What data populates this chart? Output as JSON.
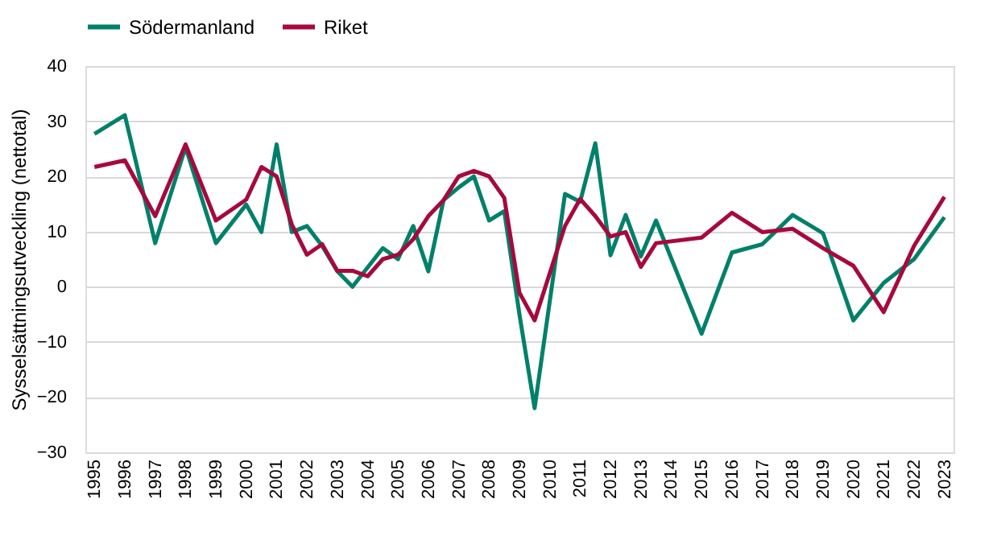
{
  "chart_data": {
    "type": "line",
    "ylabel": "Sysselsättningsutveckling  (nettotal)",
    "xlim": [
      1994.7,
      2023.3
    ],
    "xticks": [
      1995,
      1996,
      1997,
      1998,
      1999,
      2000,
      2001,
      2002,
      2003,
      2004,
      2005,
      2006,
      2007,
      2008,
      2009,
      2010,
      2011,
      2012,
      2013,
      2014,
      2015,
      2016,
      2017,
      2018,
      2019,
      2020,
      2021,
      2022,
      2023
    ],
    "ylim": [
      -30,
      40
    ],
    "yticks": [
      -30,
      -20,
      -10,
      0,
      10,
      20,
      30,
      40
    ],
    "grid": "y",
    "legend": "top",
    "line_style": "solid",
    "marker": "none",
    "series": [
      {
        "name": "Södermanland",
        "color": "#00806a",
        "x": [
          1995,
          1996,
          1997,
          1998,
          1999,
          2000,
          2000.5,
          2001,
          2001.5,
          2002,
          2002.5,
          2003,
          2003.5,
          2004.5,
          2005,
          2005.5,
          2006,
          2006.5,
          2007,
          2007.5,
          2008,
          2008.5,
          2009,
          2009.5,
          2010.5,
          2011,
          2011.5,
          2012,
          2012.5,
          2013,
          2013.5,
          2015,
          2016,
          2017,
          2018,
          2019,
          2020,
          2021,
          2022,
          2023
        ],
        "values": [
          27.7,
          31.1,
          7.9,
          25.3,
          7.9,
          14.9,
          9.9,
          25.8,
          9.9,
          11,
          7.4,
          2.8,
          0,
          7,
          5,
          11,
          2.8,
          15.7,
          18,
          20,
          12,
          13.7,
          -5,
          -22,
          16.8,
          15.4,
          26,
          5.7,
          13,
          5.5,
          12,
          -8.5,
          6.2,
          7.7,
          13,
          9.7,
          -6.1,
          0.7,
          5,
          12.6
        ]
      },
      {
        "name": "Riket",
        "color": "#a6093d",
        "x": [
          1995,
          1996,
          1997,
          1998,
          1999,
          2000,
          2000.5,
          2001,
          2001.5,
          2002,
          2002.5,
          2003,
          2003.5,
          2004,
          2004.5,
          2005,
          2005.5,
          2006,
          2006.5,
          2007,
          2007.5,
          2008,
          2008.5,
          2009,
          2009.5,
          2010.5,
          2011,
          2011.5,
          2012,
          2012.5,
          2013,
          2013.5,
          2015,
          2016,
          2017,
          2018,
          2019,
          2020,
          2021,
          2022,
          2023
        ],
        "values": [
          21.7,
          22.9,
          12.8,
          25.8,
          12,
          15.8,
          21.7,
          20,
          11.3,
          5.8,
          7.7,
          2.9,
          2.9,
          1.9,
          5,
          5.8,
          8.6,
          12.8,
          15.7,
          20,
          21,
          20,
          16.1,
          -1.1,
          -6.1,
          11,
          15.9,
          12.8,
          9.1,
          9.9,
          3.6,
          7.9,
          8.9,
          13.4,
          9.9,
          10.5,
          7,
          3.8,
          -4.6,
          7.4,
          16.3
        ]
      }
    ]
  }
}
